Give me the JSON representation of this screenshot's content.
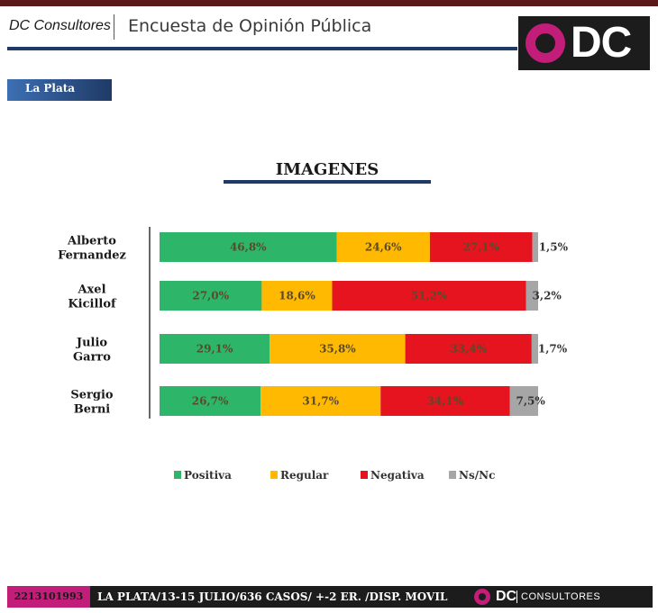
{
  "header": {
    "brand": "DC Consultores",
    "title": "Encuesta de Opinión Pública",
    "logo_text": "DC"
  },
  "location_tag": "La Plata",
  "chart_data": {
    "type": "bar",
    "orientation": "horizontal",
    "stacked": true,
    "title": "IMAGENES",
    "categories": [
      [
        "Alberto",
        "Fernandez"
      ],
      [
        "Axel",
        "Kicillof"
      ],
      [
        "Julio",
        "Garro"
      ],
      [
        "Sergio",
        "Berni"
      ]
    ],
    "series": [
      {
        "name": "Positiva",
        "color": "#2db66a",
        "values": [
          46.8,
          27.0,
          29.1,
          26.7
        ],
        "labels": [
          "46,8%",
          "27,0%",
          "29,1%",
          "26,7%"
        ]
      },
      {
        "name": "Regular",
        "color": "#ffb900",
        "values": [
          24.6,
          18.6,
          35.8,
          31.7
        ],
        "labels": [
          "24,6%",
          "18,6%",
          "35,8%",
          "31,7%"
        ]
      },
      {
        "name": "Negativa",
        "color": "#e5141e",
        "values": [
          27.1,
          51.2,
          33.4,
          34.1
        ],
        "labels": [
          "27,1%",
          "51,2%",
          "33,4%",
          "34,1%"
        ]
      },
      {
        "name": "Ns/Nc",
        "color": "#a6a6a6",
        "values": [
          1.5,
          3.2,
          1.7,
          7.5
        ],
        "labels": [
          "1,5%",
          "3,2%",
          "1,7%",
          "7,5%"
        ]
      }
    ],
    "legend_position": "bottom",
    "grid": false
  },
  "footer": {
    "phone": "2213101993",
    "info": "LA PLATA/13-15 JULIO/636 CASOS/ +-2 ER. /DISP. MOVIL",
    "logo_text": "DC",
    "consultores": "CONSULTORES"
  }
}
